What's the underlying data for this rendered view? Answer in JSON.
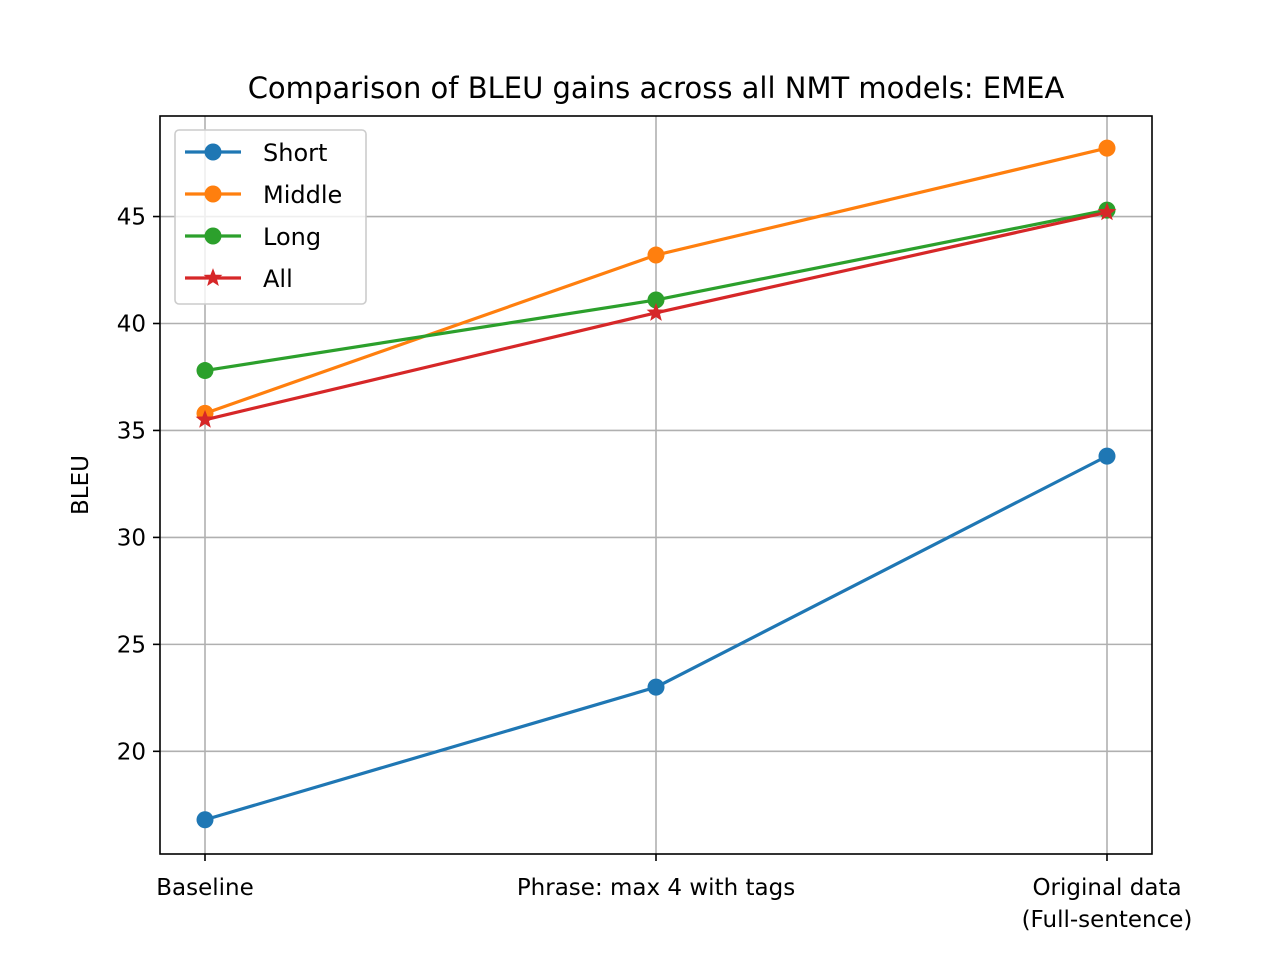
{
  "chart_data": {
    "type": "line",
    "title": "Comparison of BLEU gains across all NMT models: EMEA",
    "xlabel": "",
    "ylabel": "BLEU",
    "categories": [
      [
        "Baseline"
      ],
      [
        "Phrase: max 4 with tags"
      ],
      [
        "Original data",
        "(Full-sentence)"
      ]
    ],
    "ylim": [
      15.2,
      49.7
    ],
    "yticks": [
      20,
      25,
      30,
      35,
      40,
      45
    ],
    "grid": true,
    "legend_position": "upper-left",
    "series": [
      {
        "name": "Short",
        "values": [
          16.8,
          23.0,
          33.8
        ],
        "color": "#1f77b4",
        "marker": "circle"
      },
      {
        "name": "Middle",
        "values": [
          35.8,
          43.2,
          48.2
        ],
        "color": "#ff7f0e",
        "marker": "circle"
      },
      {
        "name": "Long",
        "values": [
          37.8,
          41.1,
          45.3
        ],
        "color": "#2ca02c",
        "marker": "circle"
      },
      {
        "name": "All",
        "values": [
          35.5,
          40.5,
          45.2
        ],
        "color": "#d62728",
        "marker": "star"
      }
    ]
  }
}
